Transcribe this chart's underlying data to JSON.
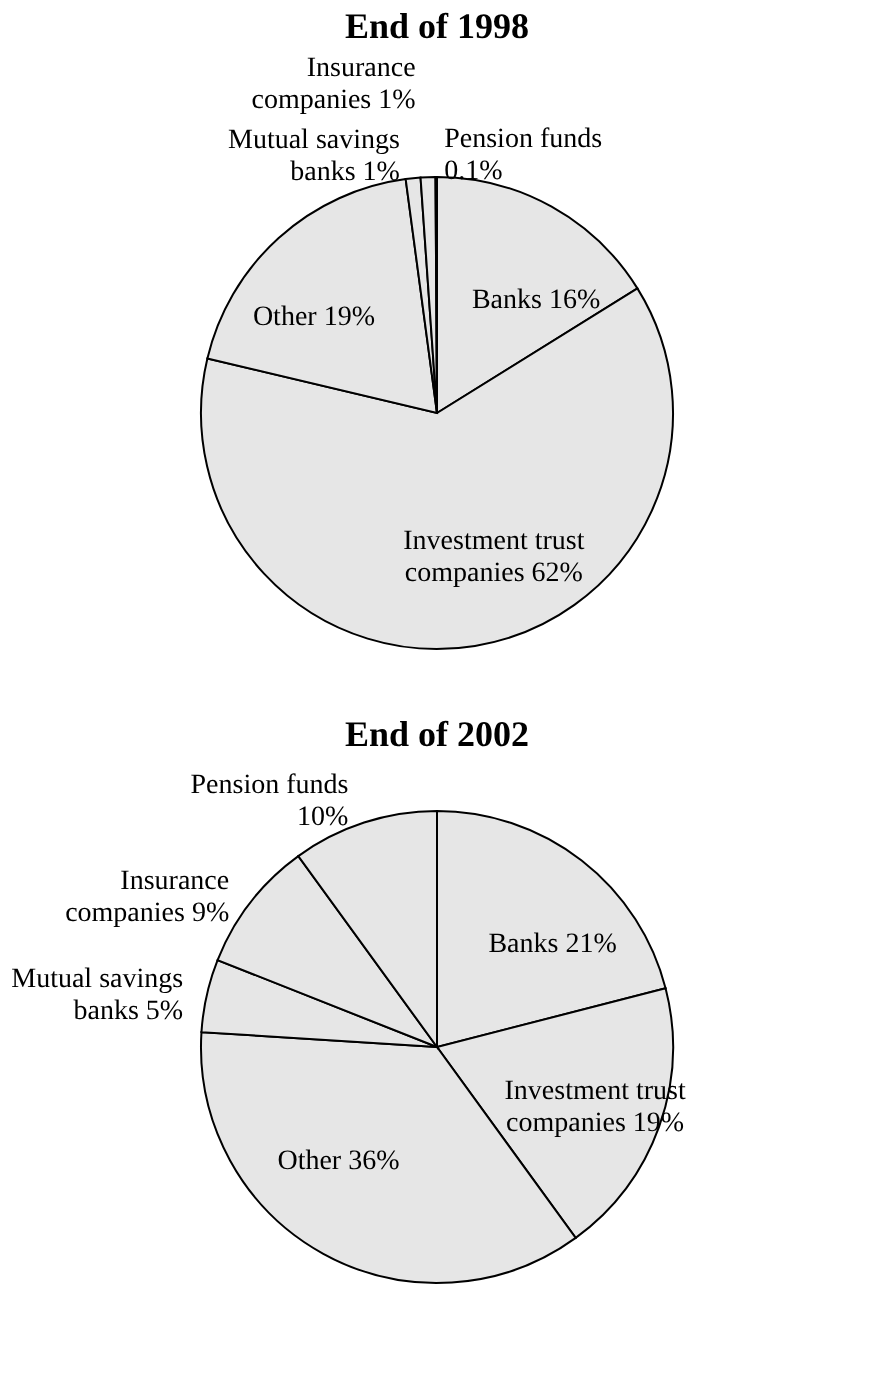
{
  "chart_data": [
    {
      "type": "pie",
      "title": "End of 1998",
      "categories": [
        "Banks",
        "Investment trust companies",
        "Other",
        "Mutual savings banks",
        "Insurance companies",
        "Pension funds"
      ],
      "values": [
        16,
        62,
        19,
        1,
        1,
        0.1
      ],
      "value_labels": [
        "16%",
        "62%",
        "19%",
        "1%",
        "1%",
        "0.1%"
      ],
      "colors": [
        "#e6e6e6",
        "#e6e6e6",
        "#e6e6e6",
        "#e6e6e6",
        "#e6e6e6",
        "#e6e6e6"
      ]
    },
    {
      "type": "pie",
      "title": "End of 2002",
      "categories": [
        "Banks",
        "Investment trust companies",
        "Other",
        "Mutual savings banks",
        "Insurance companies",
        "Pension funds"
      ],
      "values": [
        21,
        19,
        36,
        5,
        9,
        10
      ],
      "value_labels": [
        "21%",
        "19%",
        "36%",
        "5%",
        "9%",
        "10%"
      ],
      "colors": [
        "#e6e6e6",
        "#e6e6e6",
        "#e6e6e6",
        "#e6e6e6",
        "#e6e6e6",
        "#e6e6e6"
      ]
    }
  ]
}
